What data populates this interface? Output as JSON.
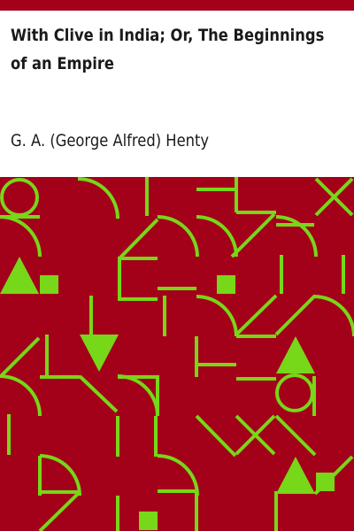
{
  "book": {
    "title": "With Clive in India; Or, The Beginnings of an Empire",
    "author": "G. A. (George Alfred) Henty"
  },
  "colors": {
    "accent": "#a30019",
    "pattern_background": "#a30019",
    "pattern_stroke": "#77d719",
    "text": "#1a1a1a",
    "page": "#ffffff"
  }
}
